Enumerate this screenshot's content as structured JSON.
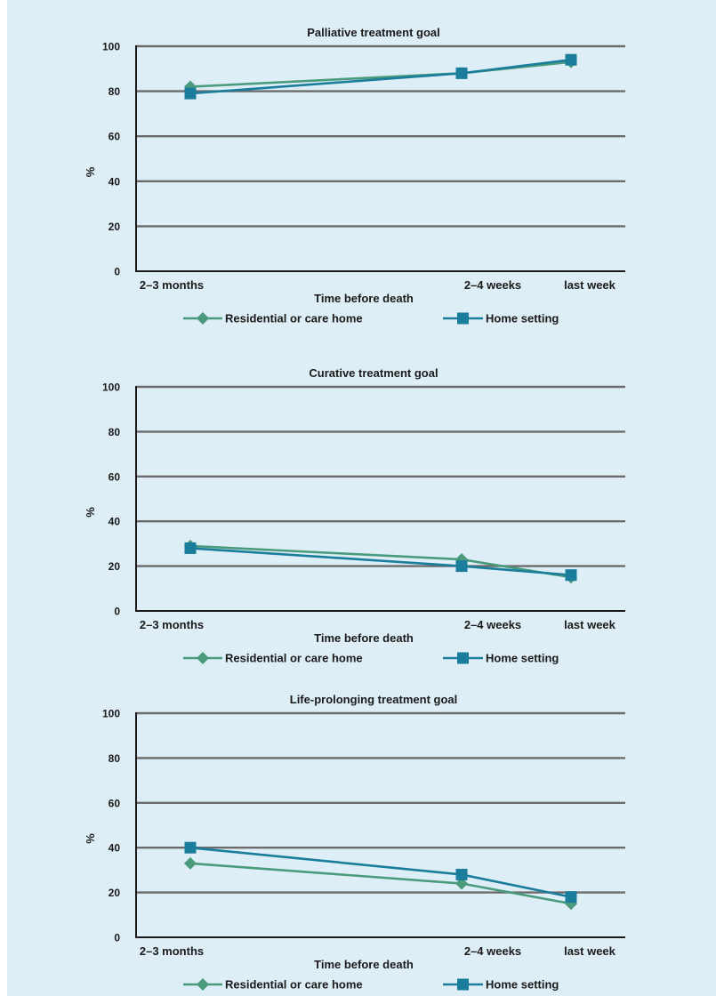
{
  "colors": {
    "residential": "#4a9a7c",
    "home": "#1b7d9c",
    "grid": "#6b6b6b",
    "background": "#deeef6"
  },
  "chart_data": [
    {
      "type": "line",
      "title": "Palliative treatment goal",
      "xlabel": "Time before death",
      "ylabel": "%",
      "categories": [
        "2–3 months",
        "2–4 weeks",
        "last week"
      ],
      "ylim": [
        0,
        100
      ],
      "yticks": [
        0,
        20,
        40,
        60,
        80,
        100
      ],
      "grid": true,
      "legend_position": "bottom",
      "series": [
        {
          "name": "Residential or care home",
          "marker": "diamond",
          "values": [
            82,
            88,
            93
          ]
        },
        {
          "name": "Home setting",
          "marker": "square",
          "values": [
            79,
            88,
            94
          ]
        }
      ]
    },
    {
      "type": "line",
      "title": "Curative treatment goal",
      "xlabel": "Time before death",
      "ylabel": "%",
      "categories": [
        "2–3 months",
        "2–4 weeks",
        "last week"
      ],
      "ylim": [
        0,
        100
      ],
      "yticks": [
        0,
        20,
        40,
        60,
        80,
        100
      ],
      "grid": true,
      "legend_position": "bottom",
      "series": [
        {
          "name": "Residential or care home",
          "marker": "diamond",
          "values": [
            29,
            23,
            15
          ]
        },
        {
          "name": "Home setting",
          "marker": "square",
          "values": [
            28,
            20,
            16
          ]
        }
      ]
    },
    {
      "type": "line",
      "title": "Life-prolonging treatment goal",
      "xlabel": "Time before death",
      "ylabel": "%",
      "categories": [
        "2–3 months",
        "2–4 weeks",
        "last week"
      ],
      "ylim": [
        0,
        100
      ],
      "yticks": [
        0,
        20,
        40,
        60,
        80,
        100
      ],
      "grid": true,
      "legend_position": "bottom",
      "series": [
        {
          "name": "Residential or care home",
          "marker": "diamond",
          "values": [
            33,
            24,
            15
          ]
        },
        {
          "name": "Home setting",
          "marker": "square",
          "values": [
            40,
            28,
            18
          ]
        }
      ]
    }
  ]
}
